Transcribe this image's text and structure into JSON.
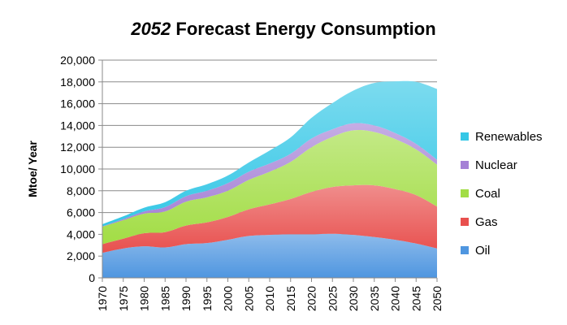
{
  "chart_data": {
    "type": "area",
    "stacked": true,
    "title_italic": "2052",
    "title_rest": " Forecast Energy Consumption",
    "xlabel": "",
    "ylabel": "Mtoe/ Year",
    "ylim": [
      0,
      20000
    ],
    "y_ticks": [
      "0",
      "2,000",
      "4,000",
      "6,000",
      "8,000",
      "10,000",
      "12,000",
      "14,000",
      "16,000",
      "18,000",
      "20,000"
    ],
    "y_tick_values": [
      0,
      2000,
      4000,
      6000,
      8000,
      10000,
      12000,
      14000,
      16000,
      18000,
      20000
    ],
    "categories": [
      "1970",
      "1975",
      "1980",
      "1985",
      "1990",
      "1995",
      "2000",
      "2005",
      "2010",
      "2015",
      "2020",
      "2025",
      "2030",
      "2035",
      "2040",
      "2045",
      "2050"
    ],
    "grid": true,
    "legend_position": "right",
    "series": [
      {
        "name": "Oil",
        "color": "#4F96E0",
        "values": [
          2300,
          2700,
          2900,
          2800,
          3100,
          3200,
          3500,
          3850,
          3950,
          4000,
          4000,
          4050,
          3950,
          3750,
          3500,
          3150,
          2700
        ]
      },
      {
        "name": "Gas",
        "color": "#E8504E",
        "values": [
          800,
          900,
          1200,
          1400,
          1700,
          1900,
          2100,
          2450,
          2800,
          3250,
          3900,
          4300,
          4550,
          4750,
          4650,
          4450,
          3850
        ]
      },
      {
        "name": "Coal",
        "color": "#A2DD45",
        "values": [
          1600,
          1700,
          1800,
          1900,
          2200,
          2300,
          2400,
          2700,
          3000,
          3400,
          4100,
          4600,
          5050,
          4900,
          4600,
          4200,
          3850
        ]
      },
      {
        "name": "Nuclear",
        "color": "#A581D6",
        "values": [
          30,
          100,
          200,
          400,
          500,
          600,
          700,
          750,
          750,
          750,
          800,
          700,
          650,
          600,
          550,
          500,
          450
        ]
      },
      {
        "name": "Renewables",
        "color": "#35C7E6",
        "values": [
          200,
          250,
          350,
          450,
          500,
          600,
          700,
          850,
          1200,
          1500,
          1900,
          2400,
          3000,
          3900,
          4750,
          5700,
          6500
        ]
      }
    ],
    "legend_order": [
      "Renewables",
      "Nuclear",
      "Coal",
      "Gas",
      "Oil"
    ]
  }
}
